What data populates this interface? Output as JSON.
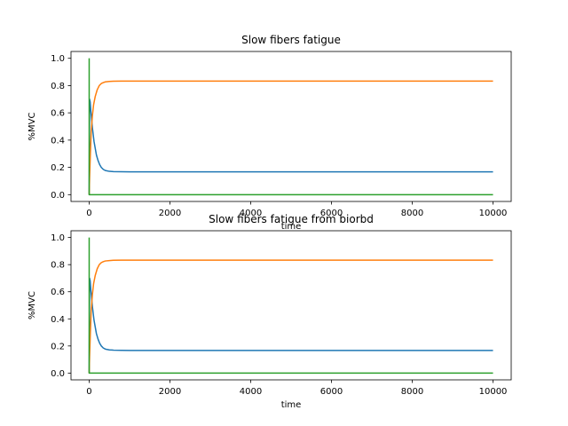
{
  "chart_data": [
    {
      "type": "line",
      "title": "Slow fibers fatigue",
      "xlabel": "time",
      "ylabel": "%MVC",
      "xlim": [
        -450,
        10450
      ],
      "ylim": [
        -0.05,
        1.05
      ],
      "xticks": [
        0,
        2000,
        4000,
        6000,
        8000,
        10000
      ],
      "xtick_labels": [
        "0",
        "2000",
        "4000",
        "6000",
        "8000",
        "10000"
      ],
      "yticks": [
        0.0,
        0.2,
        0.4,
        0.6,
        0.8,
        1.0
      ],
      "ytick_labels": [
        "0.0",
        "0.2",
        "0.4",
        "0.6",
        "0.8",
        "1.0"
      ],
      "grid": false,
      "series": [
        {
          "color": "#1f77b4",
          "x": [
            0,
            10,
            25,
            40,
            60,
            80,
            100,
            120,
            150,
            180,
            220,
            260,
            300,
            350,
            400,
            500,
            600,
            800,
            1000,
            2000,
            4000,
            6000,
            8000,
            10000
          ],
          "y": [
            0.0,
            0.7,
            0.68,
            0.62,
            0.55,
            0.49,
            0.44,
            0.39,
            0.34,
            0.29,
            0.25,
            0.22,
            0.2,
            0.185,
            0.177,
            0.171,
            0.169,
            0.168,
            0.167,
            0.167,
            0.167,
            0.167,
            0.167,
            0.167
          ]
        },
        {
          "color": "#ff7f0e",
          "x": [
            0,
            10,
            30,
            50,
            80,
            110,
            150,
            200,
            250,
            300,
            350,
            400,
            500,
            600,
            800,
            1000,
            2000,
            4000,
            6000,
            8000,
            10000
          ],
          "y": [
            0.0,
            0.12,
            0.3,
            0.46,
            0.58,
            0.66,
            0.72,
            0.77,
            0.8,
            0.815,
            0.822,
            0.827,
            0.83,
            0.832,
            0.833,
            0.833,
            0.833,
            0.833,
            0.833,
            0.833,
            0.833
          ]
        },
        {
          "color": "#2ca02c",
          "x": [
            0,
            0,
            30,
            60,
            100,
            10000
          ],
          "y": [
            1.0,
            0.0,
            0.0,
            0.0,
            0.0,
            0.0
          ]
        }
      ]
    },
    {
      "type": "line",
      "title": "Slow fibers fatigue from biorbd",
      "xlabel": "time",
      "ylabel": "%MVC",
      "xlim": [
        -450,
        10450
      ],
      "ylim": [
        -0.05,
        1.05
      ],
      "xticks": [
        0,
        2000,
        4000,
        6000,
        8000,
        10000
      ],
      "xtick_labels": [
        "0",
        "2000",
        "4000",
        "6000",
        "8000",
        "10000"
      ],
      "yticks": [
        0.0,
        0.2,
        0.4,
        0.6,
        0.8,
        1.0
      ],
      "ytick_labels": [
        "0.0",
        "0.2",
        "0.4",
        "0.6",
        "0.8",
        "1.0"
      ],
      "grid": false,
      "series": [
        {
          "color": "#1f77b4",
          "x": [
            0,
            10,
            25,
            40,
            60,
            80,
            100,
            120,
            150,
            180,
            220,
            260,
            300,
            350,
            400,
            500,
            600,
            800,
            1000,
            2000,
            4000,
            6000,
            8000,
            10000
          ],
          "y": [
            0.0,
            0.7,
            0.68,
            0.62,
            0.55,
            0.49,
            0.44,
            0.39,
            0.34,
            0.29,
            0.25,
            0.22,
            0.2,
            0.185,
            0.177,
            0.171,
            0.169,
            0.168,
            0.167,
            0.167,
            0.167,
            0.167,
            0.167,
            0.167
          ]
        },
        {
          "color": "#ff7f0e",
          "x": [
            0,
            10,
            30,
            50,
            80,
            110,
            150,
            200,
            250,
            300,
            350,
            400,
            500,
            600,
            800,
            1000,
            2000,
            4000,
            6000,
            8000,
            10000
          ],
          "y": [
            0.0,
            0.12,
            0.3,
            0.46,
            0.58,
            0.66,
            0.72,
            0.77,
            0.8,
            0.815,
            0.822,
            0.827,
            0.83,
            0.832,
            0.833,
            0.833,
            0.833,
            0.833,
            0.833,
            0.833,
            0.833
          ]
        },
        {
          "color": "#2ca02c",
          "x": [
            0,
            0,
            30,
            60,
            100,
            10000
          ],
          "y": [
            1.0,
            0.0,
            0.0,
            0.0,
            0.0,
            0.0
          ]
        }
      ]
    }
  ]
}
